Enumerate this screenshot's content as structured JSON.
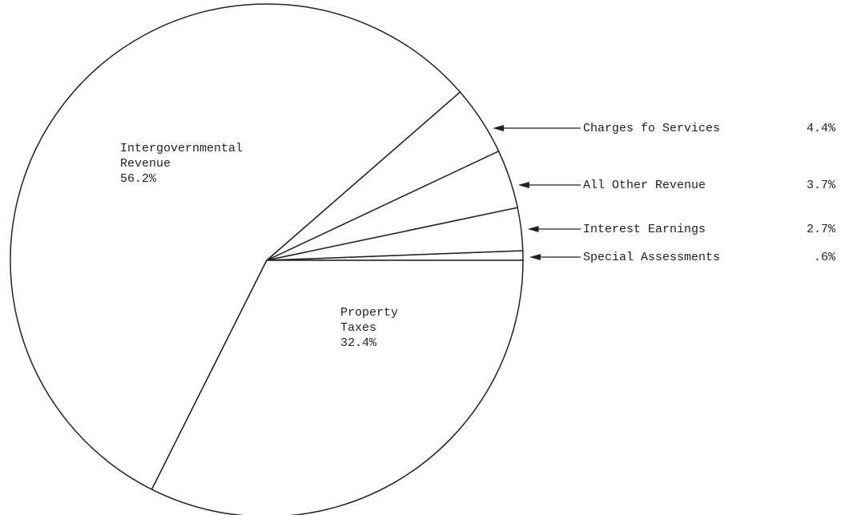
{
  "chart_data": {
    "type": "pie",
    "categories": [
      "Special Assessments",
      "Interest Earnings",
      "All Other Revenue",
      "Charges fo Services",
      "Intergovernmental Revenue",
      "Property Taxes"
    ],
    "values": [
      0.6,
      2.7,
      3.7,
      4.4,
      56.2,
      32.4
    ],
    "value_labels": [
      ".6%",
      "2.7%",
      "3.7%",
      "4.4%",
      "56.2%",
      "32.4%"
    ]
  }
}
